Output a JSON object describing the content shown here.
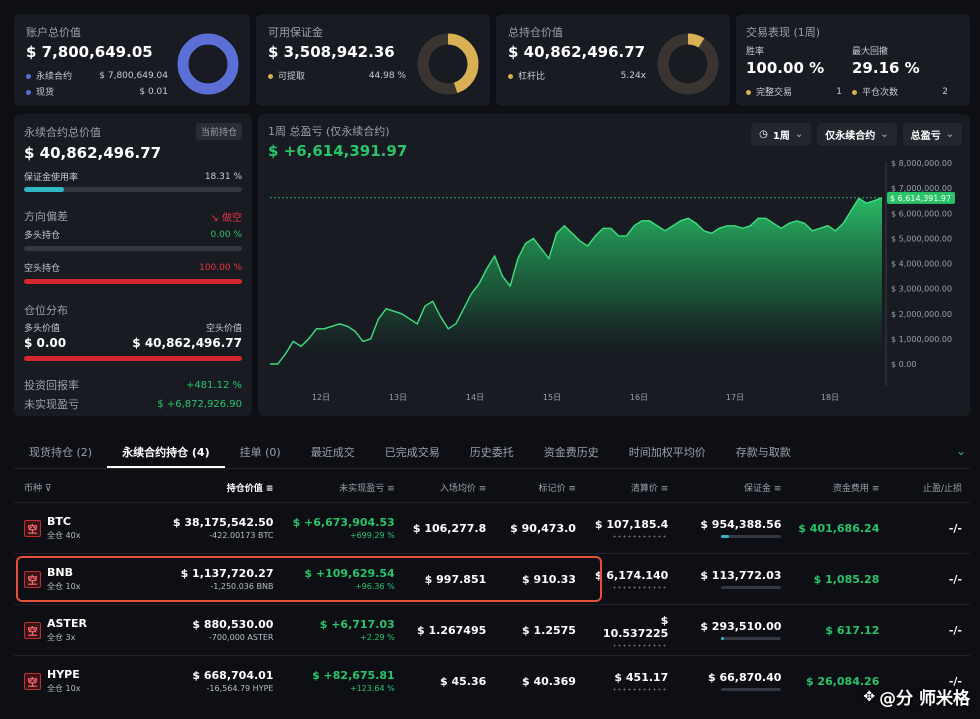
{
  "summary": {
    "account": {
      "title": "账户总价值",
      "value": "$ 7,800,649.05",
      "rows": [
        {
          "label": "永续合约",
          "value": "$ 7,800,649.04",
          "color": "#5b6fd6"
        },
        {
          "label": "现货",
          "value": "$ 0.01",
          "color": "#5b6fd6"
        }
      ]
    },
    "margin": {
      "title": "可用保证金",
      "value": "$ 3,508,942.36",
      "rows": [
        {
          "label": "可提取",
          "value": "44.98 %",
          "color": "#d9b054"
        }
      ]
    },
    "position": {
      "title": "总持仓价值",
      "value": "$ 40,862,496.77",
      "rows": [
        {
          "label": "杠杆比",
          "value": "5.24x",
          "color": "#d9b054"
        }
      ]
    },
    "performance": {
      "title": "交易表现 (1周)",
      "win_label": "胜率",
      "win_value": "100.00 %",
      "dd_label": "最大回撤",
      "dd_value": "29.16 %",
      "done_label": "完整交易",
      "done_value": "1",
      "closed_label": "平仓次数",
      "closed_value": "2"
    }
  },
  "perp": {
    "title": "永续合约总价值",
    "badge": "当前持仓",
    "value": "$ 40,862,496.77",
    "margin_label": "保证金使用率",
    "margin_pct": "18.31 %",
    "margin_fill": 0.1831,
    "bias_label": "方向偏差",
    "bias_value": "做空",
    "long_label": "多头持仓",
    "long_pct": "0.00 %",
    "long_fill": 0,
    "short_label": "空头持仓",
    "short_pct": "100.00 %",
    "short_fill": 1,
    "dist_label": "仓位分布",
    "long_val_label": "多头价值",
    "long_val": "$ 0.00",
    "short_val_label": "空头价值",
    "short_val": "$ 40,862,496.77",
    "roi_label": "投资回报率",
    "roi_value": "+481.12 %",
    "upnl_label": "未实现盈亏",
    "upnl_value": "$ +6,872,926.90"
  },
  "pnl_chart": {
    "title": "1周 总盈亏 (仅永续合约)",
    "value": "$ +6,614,391.97",
    "controls": {
      "period": "1周",
      "scope": "仅永续合约",
      "metric": "总盈亏"
    }
  },
  "chart_data": {
    "type": "area",
    "x_labels": [
      "12日",
      "13日",
      "14日",
      "15日",
      "16日",
      "17日",
      "18日"
    ],
    "y_ticks": [
      "$ 8,000,000.00",
      "$ 7,000,000.00",
      "$ 6,000,000.00",
      "$ 5,000,000.00",
      "$ 4,000,000.00",
      "$ 3,000,000.00",
      "$ 2,000,000.00",
      "$ 1,000,000.00",
      "$ 0.00"
    ],
    "ylim": [
      0,
      8000000
    ],
    "current_label": "$ 6,614,391.97",
    "current_value": 6614391.97,
    "values": [
      0,
      0,
      400000,
      900000,
      700000,
      1000000,
      1400000,
      1400000,
      1500000,
      1600000,
      1500000,
      1300000,
      900000,
      1000000,
      1800000,
      2200000,
      2100000,
      2000000,
      1800000,
      1600000,
      2300000,
      2500000,
      1900000,
      1400000,
      1600000,
      2200000,
      2800000,
      3200000,
      3800000,
      4300000,
      3500000,
      3100000,
      4200000,
      4800000,
      5000000,
      4600000,
      4200000,
      5200000,
      5500000,
      5200000,
      4900000,
      4700000,
      5100000,
      5400000,
      5400000,
      5100000,
      5100000,
      5500000,
      5700000,
      5700000,
      5500000,
      5300000,
      5500000,
      5700000,
      5800000,
      5600000,
      5300000,
      5200000,
      5400000,
      5500000,
      5500000,
      5400000,
      5500000,
      5800000,
      5800000,
      5600000,
      5400000,
      5600000,
      5700000,
      5600000,
      5300000,
      5400000,
      5500000,
      5300000,
      5600000,
      6100000,
      6600000,
      6400000,
      6500000,
      6614392
    ]
  },
  "tabs": [
    {
      "label": "现货持仓 (2)",
      "active": false
    },
    {
      "label": "永续合约持仓 (4)",
      "active": true
    },
    {
      "label": "挂单 (0)",
      "active": false
    },
    {
      "label": "最近成交",
      "active": false
    },
    {
      "label": "已完成交易",
      "active": false
    },
    {
      "label": "历史委托",
      "active": false
    },
    {
      "label": "资金费历史",
      "active": false
    },
    {
      "label": "时间加权平均价",
      "active": false
    },
    {
      "label": "存款与取款",
      "active": false
    }
  ],
  "table": {
    "headers": [
      "币种",
      "持仓价值",
      "未实现盈亏",
      "入场均价",
      "标记价",
      "清算价",
      "保证金",
      "资金费用",
      "止盈/止损"
    ],
    "rows": [
      {
        "side": "空",
        "coin": "BTC",
        "mode": "全仓 40x",
        "value": "$ 38,175,542.50",
        "qty": "-422.00173 BTC",
        "pnl": "$ +6,673,904.53",
        "pnl_pct": "+699.29 %",
        "entry": "$ 106,277.8",
        "mark": "$ 90,473.0",
        "liq": "$ 107,185.4",
        "margin": "$ 954,388.56",
        "margin_fill": 0.12,
        "funding": "$ 401,686.24",
        "tpsl": "-/-"
      },
      {
        "side": "空",
        "coin": "BNB",
        "mode": "全仓 10x",
        "value": "$ 1,137,720.27",
        "qty": "-1,250.036 BNB",
        "pnl": "$ +109,629.54",
        "pnl_pct": "+96.36 %",
        "entry": "$ 997.851",
        "mark": "$ 910.33",
        "liq": "$ 6,174.140",
        "margin": "$ 113,772.03",
        "margin_fill": 0.0,
        "funding": "$ 1,085.28",
        "tpsl": "-/-"
      },
      {
        "side": "空",
        "coin": "ASTER",
        "mode": "全仓 3x",
        "value": "$ 880,530.00",
        "qty": "-700,000 ASTER",
        "pnl": "$ +6,717.03",
        "pnl_pct": "+2.29 %",
        "entry": "$ 1.267495",
        "mark": "$ 1.2575",
        "liq": "$ 10.537225",
        "margin": "$ 293,510.00",
        "margin_fill": 0.04,
        "funding": "$ 617.12",
        "tpsl": "-/-"
      },
      {
        "side": "空",
        "coin": "HYPE",
        "mode": "全仓 10x",
        "value": "$ 668,704.01",
        "qty": "-16,564.79 HYPE",
        "pnl": "$ +82,675.81",
        "pnl_pct": "+123.64 %",
        "entry": "$ 45.36",
        "mark": "$ 40.369",
        "liq": "$ 451.17",
        "margin": "$ 66,870.40",
        "margin_fill": 0.0,
        "funding": "$ 26,084.26",
        "tpsl": "-/-"
      }
    ]
  },
  "watermark": {
    "text": "@分  师米格"
  },
  "colors": {
    "green": "#29c46a",
    "red": "#e8343d",
    "donut_blue": "#5b6fd6",
    "donut_gold": "#d9b054",
    "donut_track": "#3a3530",
    "highlight": "#e4503b"
  }
}
